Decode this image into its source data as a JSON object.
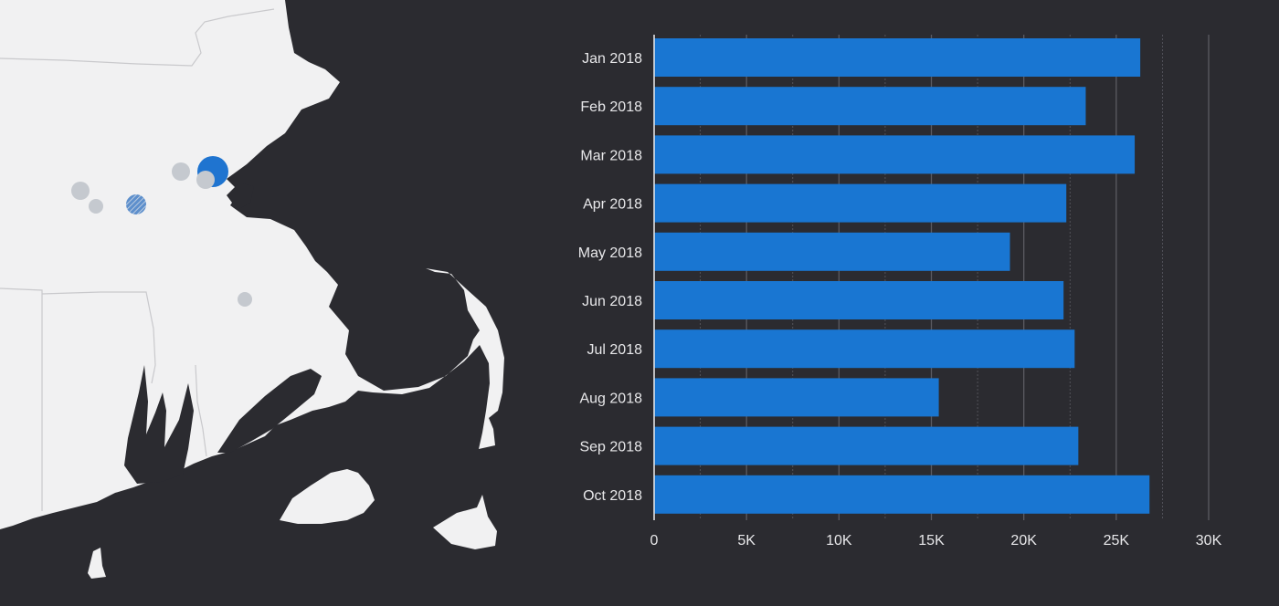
{
  "colors": {
    "background": "#2b2b30",
    "land": "#f1f1f2",
    "border_line": "#c9c9cc",
    "bar": "#1976d2",
    "marker_primary": "#1f74d0",
    "marker_secondary": "#c5c9cf",
    "grid": "#5b5b62",
    "text": "#e8e8ea"
  },
  "map": {
    "region": "Massachusetts",
    "markers": [
      {
        "size": "large",
        "color": "primary"
      },
      {
        "size": "small",
        "color": "secondary"
      },
      {
        "size": "small",
        "color": "secondary"
      },
      {
        "size": "small",
        "color": "secondary"
      },
      {
        "size": "small",
        "color": "secondary"
      },
      {
        "size": "medium",
        "color": "hatched"
      },
      {
        "size": "small",
        "color": "secondary"
      }
    ]
  },
  "chart_data": {
    "type": "bar",
    "orientation": "horizontal",
    "title": "",
    "xlabel": "",
    "ylabel": "",
    "categories": [
      "Jan 2018",
      "Feb 2018",
      "Mar 2018",
      "Apr 2018",
      "May 2018",
      "Jun 2018",
      "Jul 2018",
      "Aug 2018",
      "Sep 2018",
      "Oct 2018"
    ],
    "values": [
      26300,
      23350,
      26000,
      22300,
      19250,
      22150,
      22750,
      15400,
      22950,
      26800
    ],
    "xlim": [
      0,
      30000
    ],
    "xticks": [
      0,
      5000,
      10000,
      15000,
      20000,
      25000,
      30000
    ],
    "xtick_labels": [
      "0",
      "5K",
      "10K",
      "15K",
      "20K",
      "25K",
      "30K"
    ],
    "grid": true,
    "legend": "none"
  }
}
